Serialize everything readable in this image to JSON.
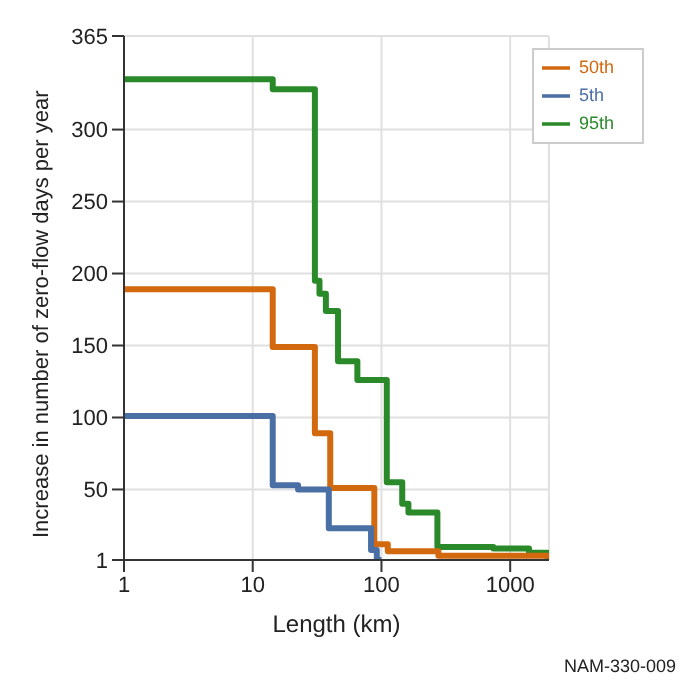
{
  "chart_data": {
    "type": "step",
    "xlabel": "Length (km)",
    "ylabel": "Increase in number of zero-flow days per year",
    "log": "x",
    "xlim": [
      1,
      2000
    ],
    "xticks": [
      1,
      10,
      100,
      1000
    ],
    "ylim": [
      1,
      365
    ],
    "yticks": [
      1,
      50,
      100,
      150,
      200,
      250,
      300,
      365
    ],
    "grid": true,
    "legend": "top right",
    "annotations": [
      "NAM-330-009"
    ],
    "series": [
      {
        "name": "95th",
        "color": "#2a8a2a",
        "x": [
          1,
          14.3,
          30.4,
          33,
          37,
          46,
          65,
          110,
          145,
          162,
          272,
          740,
          1400,
          1950
        ],
        "values": [
          335,
          328,
          195,
          186,
          174,
          139,
          126,
          55,
          40,
          34,
          10,
          9,
          6,
          1
        ]
      },
      {
        "name": "50th",
        "color": "#d2690f",
        "x": [
          1,
          14.3,
          30.4,
          40,
          88,
          112,
          277,
          2000
        ],
        "values": [
          189,
          149,
          89,
          51,
          12,
          7,
          4,
          2
        ]
      },
      {
        "name": "5th",
        "color": "#4a6fa5",
        "x": [
          1,
          14.3,
          22.5,
          39,
          83,
          92,
          100
        ],
        "values": [
          101,
          53,
          50,
          23,
          8,
          1,
          1
        ]
      }
    ]
  }
}
